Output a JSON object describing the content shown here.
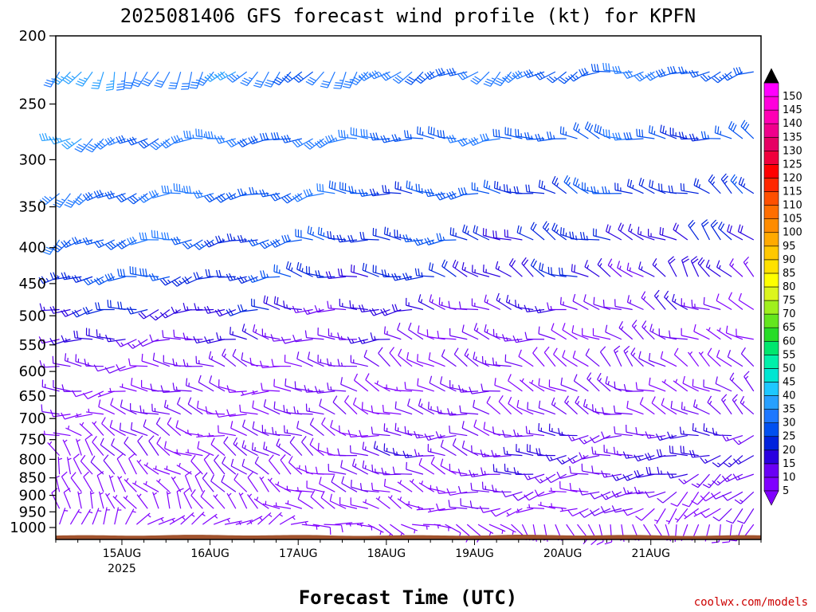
{
  "chart_data": {
    "type": "wind-barb-time-height",
    "title": "2025081406 GFS forecast wind profile (kt) for KPFN",
    "xlabel": "Forecast Time (UTC)",
    "ylabel": "",
    "y_axis": {
      "unit": "hPa",
      "reversed": true,
      "range": [
        200,
        1040
      ],
      "ticks": [
        200,
        250,
        300,
        350,
        400,
        450,
        500,
        550,
        600,
        650,
        700,
        750,
        800,
        850,
        900,
        950,
        1000
      ]
    },
    "x_axis": {
      "range_hours_from_init": [
        0,
        192
      ],
      "tick_labels": [
        {
          "label": "15AUG",
          "sub": "2025",
          "hour": 18
        },
        {
          "label": "16AUG",
          "sub": "",
          "hour": 42
        },
        {
          "label": "17AUG",
          "sub": "",
          "hour": 66
        },
        {
          "label": "18AUG",
          "sub": "",
          "hour": 90
        },
        {
          "label": "19AUG",
          "sub": "",
          "hour": 114
        },
        {
          "label": "20AUG",
          "sub": "",
          "hour": 138
        },
        {
          "label": "21AUG",
          "sub": "",
          "hour": 162
        }
      ]
    },
    "colorbar": {
      "unit": "kt",
      "levels": [
        5,
        10,
        15,
        20,
        25,
        30,
        35,
        40,
        45,
        50,
        55,
        60,
        65,
        70,
        75,
        80,
        85,
        90,
        95,
        100,
        105,
        110,
        115,
        120,
        125,
        130,
        135,
        140,
        145,
        150
      ],
      "colors": [
        "#8000ff",
        "#6a00f5",
        "#2a00e0",
        "#0022dd",
        "#0050f0",
        "#1e78ff",
        "#28a0ff",
        "#1ec8ff",
        "#00e6d2",
        "#00f0aa",
        "#00e66e",
        "#28dc28",
        "#64e61e",
        "#a0f01e",
        "#dcf51e",
        "#ffff00",
        "#ffe100",
        "#ffc800",
        "#ffaa00",
        "#ff8c00",
        "#ff6e00",
        "#ff5000",
        "#ff2800",
        "#ff0000",
        "#f0003c",
        "#e60064",
        "#f0008c",
        "#ff00b4",
        "#ff00dc",
        "#ff00ff"
      ],
      "over_color": "#000000",
      "under_color": "#8000ff"
    },
    "terrain_color": "#a0522d",
    "wind_field": {
      "time_step_hours": 3,
      "barb_row_levels": [
        225,
        280,
        335,
        390,
        440,
        490,
        540,
        590,
        640,
        690,
        740,
        790,
        840,
        890,
        940,
        990
      ],
      "speed_scale": "kt",
      "description_rows": [
        {
          "level": 225,
          "dir_start": 200,
          "dir_end": 260,
          "spd_start": 34,
          "spd_end": 28
        },
        {
          "level": 280,
          "dir_start": 240,
          "dir_end": 290,
          "spd_start": 33,
          "spd_end": 26
        },
        {
          "level": 335,
          "dir_start": 240,
          "dir_end": 300,
          "spd_start": 32,
          "spd_end": 22
        },
        {
          "level": 390,
          "dir_start": 240,
          "dir_end": 310,
          "spd_start": 30,
          "spd_end": 18
        },
        {
          "level": 440,
          "dir_start": 245,
          "dir_end": 320,
          "spd_start": 27,
          "spd_end": 15
        },
        {
          "level": 490,
          "dir_start": 250,
          "dir_end": 300,
          "spd_start": 20,
          "spd_end": 12
        },
        {
          "level": 540,
          "dir_start": 260,
          "dir_end": 300,
          "spd_start": 15,
          "spd_end": 10
        },
        {
          "level": 590,
          "dir_start": 270,
          "dir_end": 320,
          "spd_start": 12,
          "spd_end": 10
        },
        {
          "level": 640,
          "dir_start": 270,
          "dir_end": 300,
          "spd_start": 10,
          "spd_end": 10
        },
        {
          "level": 690,
          "dir_start": 280,
          "dir_end": 300,
          "spd_start": 10,
          "spd_end": 12
        },
        {
          "level": 740,
          "dir_start": 300,
          "dir_end": 260,
          "spd_start": 8,
          "spd_end": 15
        },
        {
          "level": 790,
          "dir_start": 320,
          "dir_end": 250,
          "spd_start": 8,
          "spd_end": 18
        },
        {
          "level": 840,
          "dir_start": 330,
          "dir_end": 240,
          "spd_start": 7,
          "spd_end": 16
        },
        {
          "level": 890,
          "dir_start": 340,
          "dir_end": 230,
          "spd_start": 6,
          "spd_end": 12
        },
        {
          "level": 940,
          "dir_start": 350,
          "dir_end": 220,
          "spd_start": 5,
          "spd_end": 9
        },
        {
          "level": 990,
          "dir_start": 20,
          "dir_end": 200,
          "spd_start": 4,
          "spd_end": 6
        }
      ]
    }
  },
  "credit": "coolwx.com/models"
}
